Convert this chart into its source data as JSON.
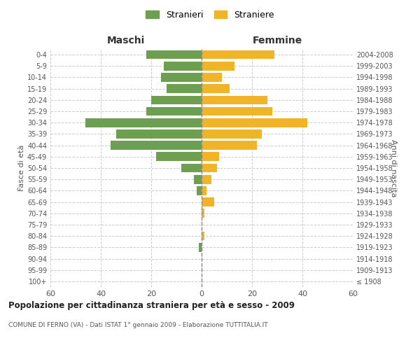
{
  "age_groups": [
    "100+",
    "95-99",
    "90-94",
    "85-89",
    "80-84",
    "75-79",
    "70-74",
    "65-69",
    "60-64",
    "55-59",
    "50-54",
    "45-49",
    "40-44",
    "35-39",
    "30-34",
    "25-29",
    "20-24",
    "15-19",
    "10-14",
    "5-9",
    "0-4"
  ],
  "birth_years": [
    "≤ 1908",
    "1909-1913",
    "1914-1918",
    "1919-1923",
    "1924-1928",
    "1929-1933",
    "1934-1938",
    "1939-1943",
    "1944-1948",
    "1949-1953",
    "1954-1958",
    "1959-1963",
    "1964-1968",
    "1969-1973",
    "1974-1978",
    "1979-1983",
    "1984-1988",
    "1989-1993",
    "1994-1998",
    "1999-2003",
    "2004-2008"
  ],
  "maschi": [
    0,
    0,
    0,
    1,
    0,
    0,
    0,
    0,
    2,
    3,
    8,
    18,
    36,
    34,
    46,
    22,
    20,
    14,
    16,
    15,
    22
  ],
  "femmine": [
    0,
    0,
    0,
    0,
    1,
    0,
    1,
    5,
    2,
    4,
    6,
    7,
    22,
    24,
    42,
    28,
    26,
    11,
    8,
    13,
    29
  ],
  "maschi_color": "#6d9f51",
  "femmine_color": "#f0b429",
  "title": "Popolazione per cittadinanza straniera per età e sesso - 2009",
  "subtitle": "COMUNE DI FERNO (VA) - Dati ISTAT 1° gennaio 2009 - Elaborazione TUTTITALIA.IT",
  "xlabel_left": "Maschi",
  "xlabel_right": "Femmine",
  "ylabel_left": "Fasce di età",
  "ylabel_right": "Anni di nascita",
  "legend_stranieri": "Stranieri",
  "legend_straniere": "Straniere",
  "xlim": 60,
  "background_color": "#ffffff",
  "grid_color": "#cccccc"
}
